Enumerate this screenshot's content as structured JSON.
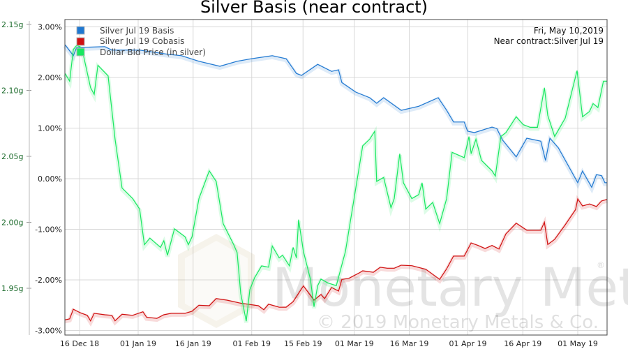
{
  "chart_data": {
    "type": "line",
    "title": "Silver Basis (near contract)",
    "x_unit": "days since 2018-12-12",
    "xlim": [
      0,
      148
    ],
    "x_ticks": [
      {
        "day": 4,
        "label": "16 Dec 18"
      },
      {
        "day": 20,
        "label": "01 Jan 19"
      },
      {
        "day": 35,
        "label": "16 Jan 19"
      },
      {
        "day": 51,
        "label": "01 Feb 19"
      },
      {
        "day": 65,
        "label": "15 Feb 19"
      },
      {
        "day": 79,
        "label": "01 Mar 19"
      },
      {
        "day": 94,
        "label": "16 Mar 19"
      },
      {
        "day": 110,
        "label": "01 Apr 19"
      },
      {
        "day": 125,
        "label": "16 Apr 19"
      },
      {
        "day": 140,
        "label": "01 May 19"
      }
    ],
    "y_left": {
      "ylim": [
        -3.1,
        3.15
      ],
      "ticks": [
        3,
        2,
        1,
        0,
        -1,
        -2,
        -3
      ],
      "labels": [
        "3.00%",
        "2.00%",
        "1.00%",
        "0.00%",
        "-1.00%",
        "-2.00%",
        "-3.00%"
      ]
    },
    "y_right_grams": {
      "ylim": [
        1.9355,
        2.1535
      ],
      "ticks": [
        2.15,
        2.1,
        2.05,
        2.0,
        1.95
      ],
      "labels": [
        "2.15g",
        "2.10g",
        "2.05g",
        "2.00g",
        "1.95g"
      ]
    },
    "grid": true,
    "legend_placement": "top-left",
    "annotation": [
      "Fri, May 10,2019",
      "Near contract:Silver Jul 19"
    ],
    "watermark": [
      "Monetary Metals",
      "®",
      "© 2019 Monetary Metals & Co."
    ],
    "series": [
      {
        "name": "Silver Jul 19 Basis",
        "color": "#1f78d1",
        "axis": "left",
        "points": [
          [
            0,
            2.65
          ],
          [
            2.3,
            2.43
          ],
          [
            3.2,
            2.59
          ],
          [
            10.9,
            2.61
          ],
          [
            12.8,
            2.54
          ],
          [
            20.4,
            2.54
          ],
          [
            28,
            2.46
          ],
          [
            31.8,
            2.43
          ],
          [
            36.6,
            2.32
          ],
          [
            42.3,
            2.22
          ],
          [
            47,
            2.32
          ],
          [
            50.9,
            2.37
          ],
          [
            56.6,
            2.43
          ],
          [
            60.4,
            2.37
          ],
          [
            63.2,
            2.08
          ],
          [
            64.6,
            2.04
          ],
          [
            69,
            2.26
          ],
          [
            72.8,
            2.12
          ],
          [
            74.7,
            2.15
          ],
          [
            75.6,
            1.9
          ],
          [
            79.4,
            1.71
          ],
          [
            83.2,
            1.6
          ],
          [
            85.1,
            1.49
          ],
          [
            87,
            1.6
          ],
          [
            91.8,
            1.35
          ],
          [
            96.6,
            1.43
          ],
          [
            101.9,
            1.6
          ],
          [
            104.2,
            1.35
          ],
          [
            106.1,
            1.12
          ],
          [
            109,
            1.12
          ],
          [
            109.9,
            0.94
          ],
          [
            111.8,
            0.91
          ],
          [
            116.6,
            1.02
          ],
          [
            117.9,
            0.99
          ],
          [
            119.4,
            0.77
          ],
          [
            123.2,
            0.43
          ],
          [
            126.1,
            0.8
          ],
          [
            129.9,
            0.74
          ],
          [
            131.2,
            0.36
          ],
          [
            132.4,
            0.8
          ],
          [
            134.7,
            0.61
          ],
          [
            140,
            -0.08
          ],
          [
            141.3,
            0.15
          ],
          [
            143.8,
            -0.17
          ],
          [
            145.1,
            0.08
          ],
          [
            146.5,
            0.06
          ],
          [
            147.4,
            -0.08
          ],
          [
            148,
            -0.08
          ]
        ]
      },
      {
        "name": "Silver Jul 19 Cobasis",
        "color": "#d01010",
        "axis": "left",
        "points": [
          [
            0,
            -2.79
          ],
          [
            1.3,
            -2.77
          ],
          [
            2.3,
            -2.58
          ],
          [
            4.2,
            -2.65
          ],
          [
            6.1,
            -2.7
          ],
          [
            7,
            -2.81
          ],
          [
            8,
            -2.66
          ],
          [
            10.9,
            -2.69
          ],
          [
            12.8,
            -2.7
          ],
          [
            13.7,
            -2.81
          ],
          [
            15.6,
            -2.68
          ],
          [
            18.5,
            -2.7
          ],
          [
            21.3,
            -2.63
          ],
          [
            22.3,
            -2.74
          ],
          [
            25.1,
            -2.76
          ],
          [
            27,
            -2.69
          ],
          [
            29,
            -2.66
          ],
          [
            32.8,
            -2.66
          ],
          [
            34.7,
            -2.62
          ],
          [
            36.6,
            -2.5
          ],
          [
            39.4,
            -2.51
          ],
          [
            41.3,
            -2.37
          ],
          [
            44.2,
            -2.4
          ],
          [
            48,
            -2.46
          ],
          [
            49.9,
            -2.48
          ],
          [
            52.8,
            -2.51
          ],
          [
            54.3,
            -2.59
          ],
          [
            55.6,
            -2.48
          ],
          [
            58.5,
            -2.54
          ],
          [
            60.4,
            -2.54
          ],
          [
            62.3,
            -2.43
          ],
          [
            65.1,
            -2.12
          ],
          [
            68,
            -2.4
          ],
          [
            69.9,
            -2.29
          ],
          [
            70.9,
            -2.37
          ],
          [
            72.8,
            -2.15
          ],
          [
            74.7,
            -2.22
          ],
          [
            75.6,
            -1.99
          ],
          [
            77.5,
            -1.97
          ],
          [
            80.4,
            -1.86
          ],
          [
            81.3,
            -1.82
          ],
          [
            84.2,
            -1.85
          ],
          [
            86.1,
            -1.75
          ],
          [
            88,
            -1.77
          ],
          [
            89.9,
            -1.77
          ],
          [
            91.8,
            -1.71
          ],
          [
            94.7,
            -1.72
          ],
          [
            98.5,
            -1.79
          ],
          [
            102.3,
            -1.99
          ],
          [
            104.2,
            -1.78
          ],
          [
            106.1,
            -1.53
          ],
          [
            109,
            -1.53
          ],
          [
            110.9,
            -1.27
          ],
          [
            112.8,
            -1.32
          ],
          [
            114.7,
            -1.38
          ],
          [
            116.6,
            -1.32
          ],
          [
            118.5,
            -1.39
          ],
          [
            120.4,
            -1.09
          ],
          [
            123.2,
            -0.88
          ],
          [
            126.1,
            -1.02
          ],
          [
            129.9,
            -1.02
          ],
          [
            130.9,
            -0.86
          ],
          [
            131.8,
            -1.3
          ],
          [
            133.7,
            -1.2
          ],
          [
            136.6,
            -0.91
          ],
          [
            139.4,
            -0.61
          ],
          [
            140,
            -0.4
          ],
          [
            141.3,
            -0.54
          ],
          [
            143.2,
            -0.5
          ],
          [
            145.1,
            -0.55
          ],
          [
            146.5,
            -0.44
          ],
          [
            148,
            -0.41
          ]
        ]
      },
      {
        "name": "Dollar Bid Price (in silver)",
        "color": "#18e860",
        "axis": "right",
        "points": [
          [
            0,
            2.113
          ],
          [
            1.3,
            2.107
          ],
          [
            2.3,
            2.131
          ],
          [
            3.2,
            2.134
          ],
          [
            4.2,
            2.133
          ],
          [
            5.1,
            2.126
          ],
          [
            7,
            2.102
          ],
          [
            8,
            2.097
          ],
          [
            9,
            2.119
          ],
          [
            11.8,
            2.111
          ],
          [
            13.7,
            2.063
          ],
          [
            15.6,
            2.026
          ],
          [
            18.5,
            2.018
          ],
          [
            20.4,
            2.01
          ],
          [
            21.7,
            1.983
          ],
          [
            23.2,
            1.988
          ],
          [
            26.1,
            1.981
          ],
          [
            27,
            1.986
          ],
          [
            28,
            1.975
          ],
          [
            29.9,
            1.995
          ],
          [
            32.8,
            1.989
          ],
          [
            33.7,
            1.983
          ],
          [
            34.7,
            1.989
          ],
          [
            36.6,
            2.018
          ],
          [
            39.4,
            2.039
          ],
          [
            41.3,
            2.031
          ],
          [
            43.2,
            1.999
          ],
          [
            46.1,
            1.983
          ],
          [
            47,
            1.977
          ],
          [
            48,
            1.946
          ],
          [
            49.5,
            1.925
          ],
          [
            50.5,
            1.949
          ],
          [
            51.8,
            1.958
          ],
          [
            53.7,
            1.967
          ],
          [
            55.6,
            1.966
          ],
          [
            56.6,
            1.982
          ],
          [
            58.5,
            1.973
          ],
          [
            59.4,
            1.975
          ],
          [
            61.3,
            1.967
          ],
          [
            62.3,
            1.981
          ],
          [
            63.2,
            1.973
          ],
          [
            63.8,
            2.002
          ],
          [
            65.1,
            1.978
          ],
          [
            67,
            1.957
          ],
          [
            68,
            1.936
          ],
          [
            69,
            1.952
          ],
          [
            69.9,
            1.957
          ],
          [
            71.8,
            1.954
          ],
          [
            74.1,
            1.952
          ],
          [
            76.6,
            1.978
          ],
          [
            79.4,
            2.026
          ],
          [
            81.3,
            2.058
          ],
          [
            83.2,
            2.063
          ],
          [
            84.6,
            2.069
          ],
          [
            85.1,
            2.031
          ],
          [
            87,
            2.034
          ],
          [
            89,
            2.011
          ],
          [
            89.9,
            2.018
          ],
          [
            91.4,
            2.052
          ],
          [
            92.4,
            2.03
          ],
          [
            94.7,
            2.018
          ],
          [
            96.6,
            2.021
          ],
          [
            97.5,
            2.03
          ],
          [
            98.5,
            2.01
          ],
          [
            100.4,
            2.015
          ],
          [
            102.3,
            1.999
          ],
          [
            104.2,
            2.018
          ],
          [
            105.7,
            2.053
          ],
          [
            109,
            2.049
          ],
          [
            110.3,
            2.065
          ],
          [
            110.9,
            2.052
          ],
          [
            112.2,
            2.063
          ],
          [
            113.7,
            2.047
          ],
          [
            116.6,
            2.039
          ],
          [
            117.5,
            2.035
          ],
          [
            119,
            2.065
          ],
          [
            120.4,
            2.068
          ],
          [
            123.2,
            2.08
          ],
          [
            125.1,
            2.074
          ],
          [
            127,
            2.072
          ],
          [
            129,
            2.072
          ],
          [
            130.9,
            2.102
          ],
          [
            131.8,
            2.081
          ],
          [
            133.7,
            2.065
          ],
          [
            136.6,
            2.079
          ],
          [
            139.8,
            2.115
          ],
          [
            141.3,
            2.08
          ],
          [
            143.2,
            2.084
          ],
          [
            144.2,
            2.09
          ],
          [
            145.5,
            2.087
          ],
          [
            147,
            2.107
          ],
          [
            148,
            2.107
          ]
        ]
      }
    ]
  }
}
